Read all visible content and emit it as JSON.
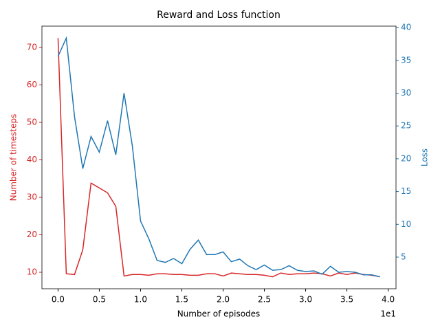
{
  "chart_data": {
    "type": "line",
    "title": "Reward and Loss function",
    "xlabel": "Number of episodes",
    "x_offset_label": "1e1",
    "ylabel": "Number of timesteps",
    "y2label": "Loss",
    "x": [
      0,
      1,
      2,
      3,
      4,
      5,
      6,
      7,
      8,
      9,
      10,
      11,
      12,
      13,
      14,
      15,
      16,
      17,
      18,
      19,
      20,
      21,
      22,
      23,
      24,
      25,
      26,
      27,
      28,
      29,
      30,
      31,
      32,
      33,
      34,
      35,
      36,
      37,
      38,
      39
    ],
    "series": [
      {
        "color": "#d62728",
        "axis": "y",
        "values": [
          72.5,
          9.6,
          9.4,
          16,
          33.8,
          32.5,
          31.2,
          27.6,
          9.0,
          9.4,
          9.4,
          9.2,
          9.6,
          9.6,
          9.4,
          9.4,
          9.2,
          9.2,
          9.6,
          9.6,
          9.0,
          9.8,
          9.6,
          9.4,
          9.4,
          9.2,
          8.8,
          9.8,
          9.4,
          9.6,
          9.6,
          9.8,
          9.6,
          9.0,
          9.8,
          9.4,
          9.8,
          9.4,
          9.2,
          8.8
        ]
      },
      {
        "color": "#1f77b4",
        "axis": "y2",
        "values": [
          35.6,
          38.4,
          26.4,
          18.5,
          23.4,
          21.0,
          25.8,
          20.6,
          30.0,
          22.0,
          10.5,
          7.8,
          4.5,
          4.2,
          4.8,
          4.0,
          6.2,
          7.6,
          5.4,
          5.4,
          5.8,
          4.3,
          4.7,
          3.7,
          3.1,
          3.8,
          3.0,
          3.1,
          3.7,
          3.0,
          2.8,
          2.9,
          2.4,
          3.6,
          2.7,
          2.8,
          2.7,
          2.3,
          2.3,
          2.0
        ]
      }
    ],
    "xlim": [
      -1.95,
      40.95
    ],
    "xticks": [
      {
        "value": 0,
        "label": "0.0"
      },
      {
        "value": 5,
        "label": "0.5"
      },
      {
        "value": 10,
        "label": "1.0"
      },
      {
        "value": 15,
        "label": "1.5"
      },
      {
        "value": 20,
        "label": "2.0"
      },
      {
        "value": 25,
        "label": "2.5"
      },
      {
        "value": 30,
        "label": "3.0"
      },
      {
        "value": 35,
        "label": "3.5"
      },
      {
        "value": 40,
        "label": "4.0"
      }
    ],
    "ylim": [
      5.6,
      75.7
    ],
    "yticks": [
      10,
      20,
      30,
      40,
      50,
      60,
      70
    ],
    "y2lim": [
      0.18,
      40.22
    ],
    "y2ticks": [
      5,
      10,
      15,
      20,
      25,
      30,
      35,
      40
    ]
  }
}
